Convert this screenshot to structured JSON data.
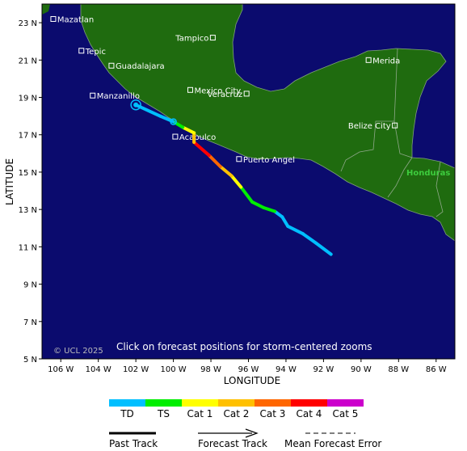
{
  "map": {
    "y_ticks": [
      "23 N",
      "21 N",
      "19 N",
      "17 N",
      "15 N",
      "13 N",
      "11 N",
      "9 N",
      "7 N",
      "5 N"
    ],
    "x_ticks": [
      "106 W",
      "104 W",
      "102 W",
      "100 W",
      "98 W",
      "96 W",
      "94 W",
      "92 W",
      "90 W",
      "88 W",
      "86 W"
    ],
    "y_axis_label": "LATITUDE",
    "x_axis_label": "LONGITUDE",
    "copyright": "© UCL 2025",
    "hint": "Click on forecast positions for storm-centered zooms",
    "country_label": "Honduras",
    "cities": [
      "Mazatlan",
      "Tepic",
      "Guadalajara",
      "Manzanillo",
      "Tampico",
      "Mexico City",
      "Veracruz",
      "Acapulco",
      "Puerto Angel",
      "Merida",
      "Belize City"
    ],
    "colors": {
      "ocean": "#0b0b6e",
      "land": "#1f6b0f",
      "border": "#8fa88a",
      "honduras": "#3dcc3d"
    }
  },
  "storm_track": {
    "points_lon_lat": [
      [
        -91.6,
        10.6
      ],
      [
        -92.4,
        11.2
      ],
      [
        -93.1,
        11.7
      ],
      [
        -93.9,
        12.1
      ],
      [
        -94.2,
        12.6
      ],
      [
        -94.6,
        12.9
      ],
      [
        -95.2,
        13.1
      ],
      [
        -95.8,
        13.4
      ],
      [
        -96.4,
        14.2
      ],
      [
        -96.9,
        14.8
      ],
      [
        -97.5,
        15.3
      ],
      [
        -98.1,
        15.9
      ],
      [
        -98.9,
        16.6
      ],
      [
        -98.9,
        17.1
      ],
      [
        -99.5,
        17.4
      ],
      [
        -100.0,
        17.7
      ],
      [
        -100.7,
        18.0
      ],
      [
        -102.0,
        18.6
      ]
    ],
    "categories_per_segment": [
      "TD",
      "TD",
      "TD",
      "TD",
      "TD",
      "TS",
      "TS",
      "TS",
      "Cat 1",
      "Cat 2",
      "Cat 3",
      "Cat 4",
      "Cat 2",
      "Cat 1",
      "TS",
      "TD",
      "TD"
    ]
  },
  "legend": {
    "scale": [
      {
        "label": "TD",
        "color": "#00bfff"
      },
      {
        "label": "TS",
        "color": "#00ee00"
      },
      {
        "label": "Cat 1",
        "color": "#ffff00"
      },
      {
        "label": "Cat 2",
        "color": "#ffc000"
      },
      {
        "label": "Cat 3",
        "color": "#ff6600"
      },
      {
        "label": "Cat 4",
        "color": "#ff0000"
      },
      {
        "label": "Cat 5",
        "color": "#cc00cc"
      }
    ],
    "past_track": "Past Track",
    "forecast_track": "Forecast Track",
    "mean_error": "Mean Forecast Error"
  }
}
